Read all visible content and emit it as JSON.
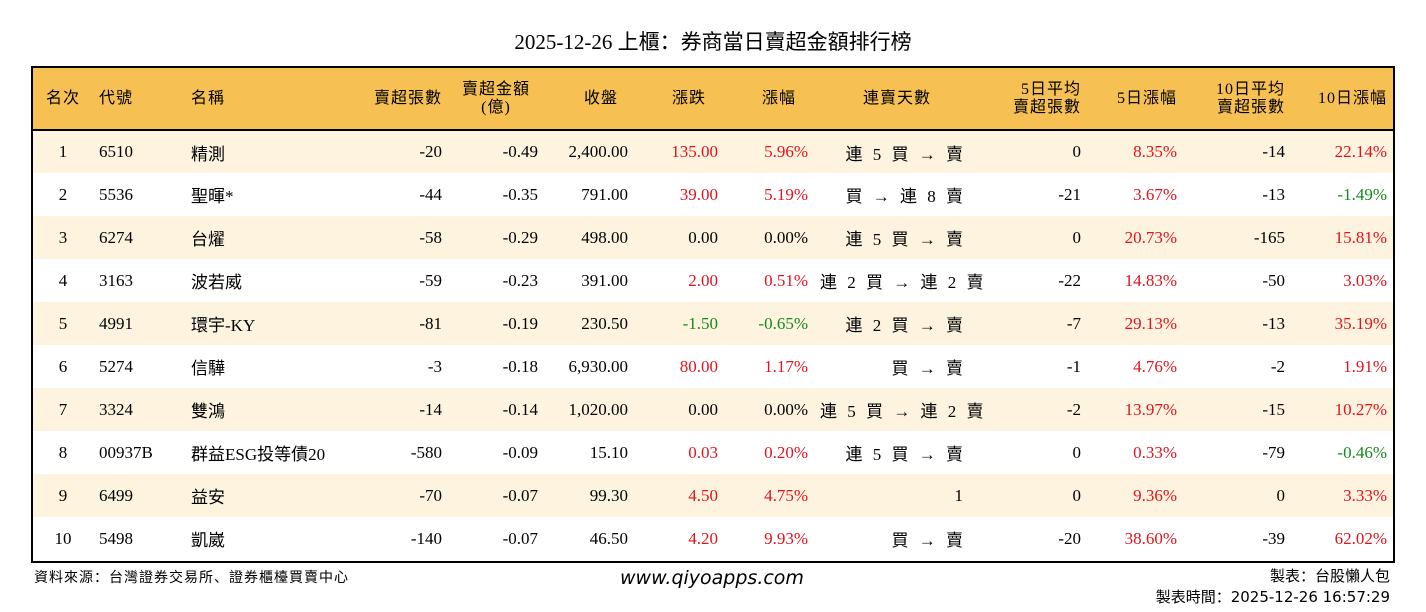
{
  "title": "2025-12-26 上櫃：券商當日賣超金額排行榜",
  "colors": {
    "header_bg": "#f7c052",
    "row_odd_bg": "#fdf3de",
    "row_even_bg": "#ffffff",
    "up": "#e0141e",
    "down": "#15891d"
  },
  "table": {
    "headers": {
      "rank": "名次",
      "code": "代號",
      "name": "名稱",
      "net_sell_lots": "賣超張數",
      "net_sell_amount_l1": "賣超金額",
      "net_sell_amount_l2": "(億)",
      "close": "收盤",
      "change": "漲跌",
      "change_pct": "漲幅",
      "streak": "連賣天數",
      "avg5_l1": "5日平均",
      "avg5_l2": "賣超張數",
      "chg5": "5日漲幅",
      "avg10_l1": "10日平均",
      "avg10_l2": "賣超張數",
      "chg10": "10日漲幅"
    },
    "rows": [
      {
        "rank": "1",
        "code": "6510",
        "name": "精測",
        "net_sell_lots": "-20",
        "net_sell_amount": "-0.49",
        "close": "2,400.00",
        "change": "135.00",
        "change_dir": "up",
        "change_pct": "5.96%",
        "streak": "連 5 買 → 賣",
        "avg5": "0",
        "chg5": "8.35%",
        "chg5_dir": "up",
        "avg10": "-14",
        "chg10": "22.14%",
        "chg10_dir": "up"
      },
      {
        "rank": "2",
        "code": "5536",
        "name": "聖暉*",
        "net_sell_lots": "-44",
        "net_sell_amount": "-0.35",
        "close": "791.00",
        "change": "39.00",
        "change_dir": "up",
        "change_pct": "5.19%",
        "streak": "買 → 連 8 賣",
        "avg5": "-21",
        "chg5": "3.67%",
        "chg5_dir": "up",
        "avg10": "-13",
        "chg10": "-1.49%",
        "chg10_dir": "down"
      },
      {
        "rank": "3",
        "code": "6274",
        "name": "台燿",
        "net_sell_lots": "-58",
        "net_sell_amount": "-0.29",
        "close": "498.00",
        "change": "0.00",
        "change_dir": "flat",
        "change_pct": "0.00%",
        "streak": "連 5 買 → 賣",
        "avg5": "0",
        "chg5": "20.73%",
        "chg5_dir": "up",
        "avg10": "-165",
        "chg10": "15.81%",
        "chg10_dir": "up"
      },
      {
        "rank": "4",
        "code": "3163",
        "name": "波若威",
        "net_sell_lots": "-59",
        "net_sell_amount": "-0.23",
        "close": "391.00",
        "change": "2.00",
        "change_dir": "up",
        "change_pct": "0.51%",
        "streak": "連 2 買 → 連 2 賣",
        "avg5": "-22",
        "chg5": "14.83%",
        "chg5_dir": "up",
        "avg10": "-50",
        "chg10": "3.03%",
        "chg10_dir": "up"
      },
      {
        "rank": "5",
        "code": "4991",
        "name": "環宇-KY",
        "net_sell_lots": "-81",
        "net_sell_amount": "-0.19",
        "close": "230.50",
        "change": "-1.50",
        "change_dir": "down",
        "change_pct": "-0.65%",
        "streak": "連 2 買 → 賣",
        "avg5": "-7",
        "chg5": "29.13%",
        "chg5_dir": "up",
        "avg10": "-13",
        "chg10": "35.19%",
        "chg10_dir": "up"
      },
      {
        "rank": "6",
        "code": "5274",
        "name": "信驊",
        "net_sell_lots": "-3",
        "net_sell_amount": "-0.18",
        "close": "6,930.00",
        "change": "80.00",
        "change_dir": "up",
        "change_pct": "1.17%",
        "streak": "買 → 賣",
        "avg5": "-1",
        "chg5": "4.76%",
        "chg5_dir": "up",
        "avg10": "-2",
        "chg10": "1.91%",
        "chg10_dir": "up"
      },
      {
        "rank": "7",
        "code": "3324",
        "name": "雙鴻",
        "net_sell_lots": "-14",
        "net_sell_amount": "-0.14",
        "close": "1,020.00",
        "change": "0.00",
        "change_dir": "flat",
        "change_pct": "0.00%",
        "streak": "連 5 買 → 連 2 賣",
        "avg5": "-2",
        "chg5": "13.97%",
        "chg5_dir": "up",
        "avg10": "-15",
        "chg10": "10.27%",
        "chg10_dir": "up"
      },
      {
        "rank": "8",
        "code": "00937B",
        "name": "群益ESG投等債20",
        "net_sell_lots": "-580",
        "net_sell_amount": "-0.09",
        "close": "15.10",
        "change": "0.03",
        "change_dir": "up",
        "change_pct": "0.20%",
        "streak": "連 5 買 → 賣",
        "avg5": "0",
        "chg5": "0.33%",
        "chg5_dir": "up",
        "avg10": "-79",
        "chg10": "-0.46%",
        "chg10_dir": "down"
      },
      {
        "rank": "9",
        "code": "6499",
        "name": "益安",
        "net_sell_lots": "-70",
        "net_sell_amount": "-0.07",
        "close": "99.30",
        "change": "4.50",
        "change_dir": "up",
        "change_pct": "4.75%",
        "streak": "1",
        "avg5": "0",
        "chg5": "9.36%",
        "chg5_dir": "up",
        "avg10": "0",
        "chg10": "3.33%",
        "chg10_dir": "up"
      },
      {
        "rank": "10",
        "code": "5498",
        "name": "凱崴",
        "net_sell_lots": "-140",
        "net_sell_amount": "-0.07",
        "close": "46.50",
        "change": "4.20",
        "change_dir": "up",
        "change_pct": "9.93%",
        "streak": "買 → 賣",
        "avg5": "-20",
        "chg5": "38.60%",
        "chg5_dir": "up",
        "avg10": "-39",
        "chg10": "62.02%",
        "chg10_dir": "up"
      }
    ]
  },
  "footer": {
    "source": "資料來源：台灣證券交易所、證券櫃檯買賣中心",
    "website": "www.qiyoapps.com",
    "author": "製表：台股懶人包",
    "generated_at": "製表時間：2025-12-26 16:57:29"
  }
}
